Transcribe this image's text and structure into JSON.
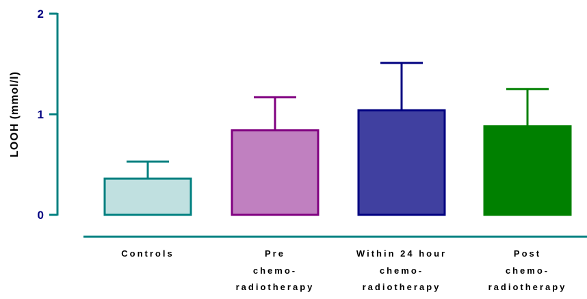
{
  "chart_data": {
    "type": "bar",
    "title": "",
    "xlabel": "",
    "ylabel": "LOOH (mmol/l)",
    "ylim": [
      0,
      2
    ],
    "yticks": [
      "0",
      "1",
      "2"
    ],
    "ytick_values": [
      0,
      1,
      2
    ],
    "grid": false,
    "legend": "none",
    "categories": [
      [
        "Controls"
      ],
      [
        "Pre",
        "chemo-",
        "radiotherapy"
      ],
      [
        "Within 24 hour",
        "chemo-",
        "radiotherapy"
      ],
      [
        "Post",
        "chemo-",
        "radiotherapy"
      ]
    ],
    "values": [
      0.36,
      0.84,
      1.04,
      0.88
    ],
    "error_upper": [
      0.53,
      1.17,
      1.51,
      1.25
    ],
    "bar_fill_colors": [
      "#c0e0e0",
      "#c080c0",
      "#4040a0",
      "#008000"
    ],
    "bar_edge_colors": [
      "#008080",
      "#800080",
      "#000080",
      "#008000"
    ],
    "axis_color": "#008080",
    "tick_label_color": "#000080"
  }
}
